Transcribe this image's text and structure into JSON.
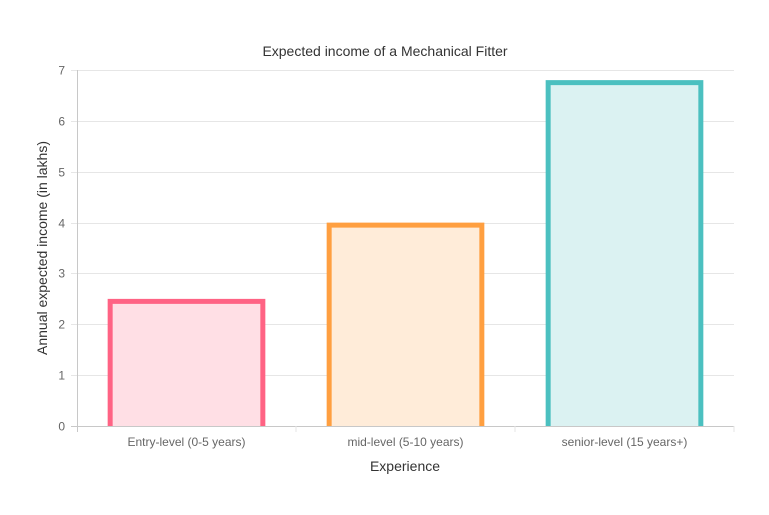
{
  "chart_data": {
    "type": "bar",
    "title": "Expected income of a Mechanical Fitter",
    "xlabel": "Experience",
    "ylabel": "Annual expected income (in lakhs)",
    "categories": [
      "Entry-level (0-5 years)",
      "mid-level (5-10 years)",
      "senior-level (15 years+)"
    ],
    "values": [
      2.5,
      4,
      6.8
    ],
    "ylim": [
      0,
      7
    ],
    "yticks": [
      0,
      1,
      2,
      3,
      4,
      5,
      6,
      7
    ],
    "grid": true,
    "legend": "none",
    "colors": {
      "border": [
        "#ff6384",
        "#ff9f40",
        "#4bc0c0"
      ],
      "fill": [
        "#ffdfe5",
        "#ffecd9",
        "#dbf2f2"
      ]
    }
  }
}
